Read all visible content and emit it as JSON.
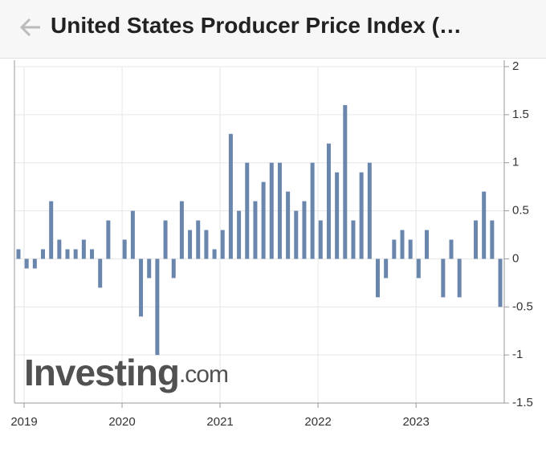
{
  "header": {
    "title": "United States Producer Price Index (…"
  },
  "chart_data": {
    "type": "bar",
    "watermark": "Investing",
    "watermark_suffix": ".com",
    "categories": [
      "2019",
      null,
      null,
      null,
      null,
      null,
      null,
      null,
      null,
      null,
      null,
      null,
      "2020",
      null,
      null,
      null,
      null,
      null,
      null,
      null,
      null,
      null,
      null,
      null,
      "2021",
      null,
      null,
      null,
      null,
      null,
      null,
      null,
      null,
      null,
      null,
      null,
      "2022",
      null,
      null,
      null,
      null,
      null,
      null,
      null,
      null,
      null,
      null,
      null,
      "2023",
      null,
      null,
      null,
      null,
      null,
      null,
      null,
      null,
      null,
      null,
      null
    ],
    "values": [
      0.1,
      -0.1,
      -0.1,
      0.1,
      0.6,
      0.2,
      0.1,
      0.1,
      0.2,
      0.1,
      -0.3,
      0.4,
      0,
      0.2,
      0.5,
      -0.6,
      -0.2,
      -1.0,
      0.4,
      -0.2,
      0.6,
      0.3,
      0.4,
      0.3,
      0.1,
      0.3,
      1.3,
      0.5,
      1.0,
      0.6,
      0.8,
      1.0,
      1.0,
      0.7,
      0.5,
      0.6,
      1.0,
      0.4,
      1.2,
      0.9,
      1.6,
      0.4,
      0.9,
      1.0,
      -0.4,
      -0.2,
      0.2,
      0.3,
      0.2,
      -0.2,
      0.3,
      0,
      -0.4,
      0.2,
      -0.4,
      0,
      0.4,
      0.7,
      0.4,
      -0.5
    ],
    "color": "#6a86ad",
    "ylim": [
      -1.5,
      2
    ],
    "yticks": [
      -1.5,
      -1,
      -0.5,
      0,
      0.5,
      1,
      1.5,
      2
    ],
    "grid": true,
    "y_axis_side": "right"
  }
}
